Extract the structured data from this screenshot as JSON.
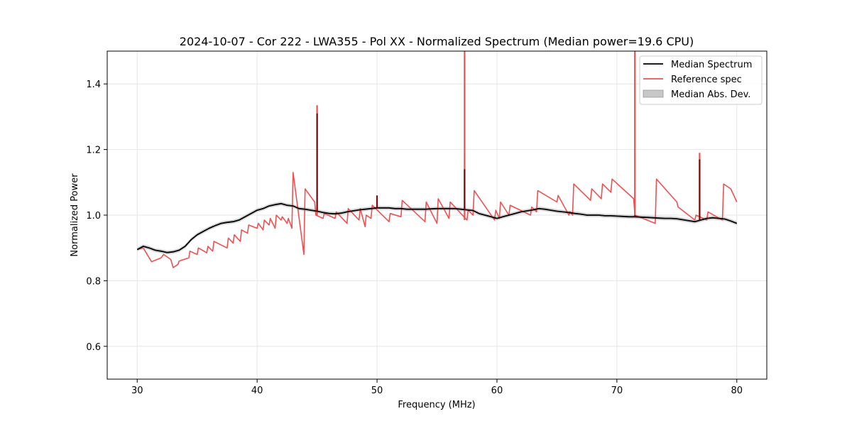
{
  "chart_data": {
    "type": "line",
    "title": "2024-10-07 - Cor 222 - LWA355 - Pol XX - Normalized Spectrum (Median power=19.6 CPU)",
    "xlabel": "Frequency (MHz)",
    "ylabel": "Normalized Power",
    "xlim": [
      27.5,
      82.5
    ],
    "ylim": [
      0.5,
      1.5
    ],
    "xticks": [
      30,
      40,
      50,
      60,
      70,
      80
    ],
    "yticks": [
      0.6,
      0.8,
      1.0,
      1.2,
      1.4
    ],
    "xtick_labels": [
      "30",
      "40",
      "50",
      "60",
      "70",
      "80"
    ],
    "ytick_labels": [
      "0.6",
      "0.8",
      "1.0",
      "1.2",
      "1.4"
    ],
    "grid": true,
    "legend_position": "top-right",
    "legend": [
      {
        "label": "Median Spectrum",
        "kind": "line",
        "color": "#000000"
      },
      {
        "label": "Reference spec",
        "kind": "line",
        "color": "#f05050"
      },
      {
        "label": "Median Abs. Dev.",
        "kind": "patch",
        "color": "#c8c8c8"
      }
    ],
    "series": [
      {
        "name": "Median Spectrum",
        "color": "#000000",
        "x": [
          30.0,
          30.5,
          31.0,
          31.5,
          32.0,
          32.5,
          33.0,
          33.5,
          34.0,
          34.5,
          35.0,
          35.5,
          36.0,
          36.5,
          37.0,
          37.5,
          38.0,
          38.5,
          39.0,
          39.5,
          40.0,
          40.5,
          41.0,
          41.5,
          42.0,
          42.5,
          43.0,
          43.5,
          44.0,
          44.5,
          45.0,
          45.5,
          46.0,
          46.5,
          47.0,
          47.5,
          48.0,
          48.5,
          49.0,
          49.5,
          50.0,
          50.5,
          51.0,
          51.5,
          52.0,
          52.5,
          53.0,
          53.5,
          54.0,
          54.5,
          55.0,
          55.5,
          56.0,
          56.5,
          57.0,
          57.5,
          58.0,
          58.5,
          59.0,
          59.5,
          60.0,
          60.5,
          61.0,
          61.5,
          62.0,
          62.5,
          63.0,
          63.5,
          64.0,
          64.5,
          65.0,
          65.5,
          66.0,
          66.5,
          67.0,
          67.5,
          68.0,
          68.5,
          69.0,
          69.5,
          70.0,
          70.5,
          71.0,
          71.5,
          72.0,
          72.5,
          73.0,
          73.5,
          74.0,
          74.5,
          75.0,
          75.5,
          76.0,
          76.5,
          77.0,
          77.5,
          78.0,
          78.5,
          79.0,
          79.5,
          80.0
        ],
        "y": [
          0.895,
          0.905,
          0.9,
          0.893,
          0.89,
          0.886,
          0.888,
          0.893,
          0.905,
          0.925,
          0.94,
          0.95,
          0.96,
          0.968,
          0.975,
          0.978,
          0.98,
          0.985,
          0.995,
          1.005,
          1.015,
          1.02,
          1.028,
          1.032,
          1.035,
          1.03,
          1.028,
          1.02,
          1.018,
          1.015,
          1.012,
          1.008,
          1.005,
          1.004,
          1.006,
          1.01,
          1.013,
          1.016,
          1.018,
          1.02,
          1.022,
          1.022,
          1.022,
          1.02,
          1.02,
          1.018,
          1.018,
          1.018,
          1.018,
          1.019,
          1.02,
          1.02,
          1.02,
          1.02,
          1.018,
          1.016,
          1.014,
          1.005,
          1.0,
          0.995,
          0.99,
          0.995,
          1.0,
          1.005,
          1.01,
          1.013,
          1.016,
          1.02,
          1.018,
          1.015,
          1.012,
          1.01,
          1.008,
          1.005,
          1.003,
          1.0,
          1.0,
          1.0,
          0.998,
          0.998,
          0.997,
          0.996,
          0.995,
          0.995,
          0.994,
          0.993,
          0.992,
          0.991,
          0.99,
          0.99,
          0.989,
          0.986,
          0.983,
          0.98,
          0.985,
          0.99,
          0.992,
          0.99,
          0.988,
          0.982,
          0.975
        ],
        "spikes": [
          {
            "x": 45.0,
            "y": 1.31
          },
          {
            "x": 50.0,
            "y": 1.06
          },
          {
            "x": 57.3,
            "y": 1.14
          },
          {
            "x": 71.5,
            "y": 1.0
          },
          {
            "x": 76.9,
            "y": 1.17
          }
        ]
      },
      {
        "name": "Reference spec",
        "color": "#f05050",
        "x": [
          30.0,
          30.5,
          31.0,
          31.2,
          32.0,
          32.2,
          32.8,
          33.0,
          33.4,
          33.5,
          34.3,
          34.4,
          35.0,
          35.1,
          35.8,
          35.9,
          36.3,
          36.4,
          37.5,
          37.6,
          38.0,
          38.1,
          38.6,
          38.7,
          39.2,
          39.3,
          40.0,
          40.1,
          40.5,
          40.6,
          41.0,
          41.1,
          41.5,
          41.6,
          42.0,
          42.1,
          42.5,
          42.6,
          42.9,
          43.0,
          43.9,
          44.0,
          44.8,
          44.9,
          45.5,
          45.6,
          46.5,
          46.6,
          47.5,
          47.6,
          48.5,
          48.6,
          49.0,
          49.1,
          49.5,
          49.6,
          51.0,
          51.1,
          52.0,
          52.1,
          54.0,
          54.1,
          55.0,
          55.1,
          56.0,
          56.1,
          57.5,
          57.6,
          58.0,
          58.1,
          59.8,
          59.9,
          60.2,
          60.3,
          61.0,
          61.1,
          62.8,
          62.9,
          63.3,
          63.4,
          65.0,
          65.1,
          66.0,
          66.1,
          66.3,
          66.4,
          67.8,
          67.9,
          68.7,
          68.8,
          69.5,
          69.6,
          71.4,
          71.5,
          73.2,
          73.3,
          75.0,
          75.1,
          76.5,
          76.6,
          77.5,
          77.6,
          78.8,
          78.9,
          79.5,
          80.0
        ],
        "y": [
          0.895,
          0.9,
          0.87,
          0.858,
          0.87,
          0.88,
          0.865,
          0.84,
          0.85,
          0.86,
          0.87,
          0.89,
          0.88,
          0.9,
          0.885,
          0.905,
          0.89,
          0.92,
          0.9,
          0.93,
          0.915,
          0.94,
          0.92,
          0.955,
          0.945,
          0.97,
          0.96,
          0.975,
          0.955,
          0.985,
          0.97,
          0.99,
          0.96,
          1.0,
          0.985,
          0.995,
          0.975,
          0.99,
          0.96,
          1.13,
          0.88,
          1.08,
          1.04,
          1.0,
          0.99,
          1.005,
          0.99,
          1.01,
          0.975,
          1.02,
          0.985,
          1.02,
          0.965,
          1.0,
          0.99,
          1.03,
          0.98,
          1.005,
          0.995,
          1.045,
          0.98,
          1.04,
          0.975,
          1.05,
          0.99,
          1.04,
          0.985,
          1.015,
          1.0,
          1.075,
          0.985,
          1.015,
          0.99,
          1.04,
          1.0,
          1.03,
          1.0,
          1.025,
          1.01,
          1.075,
          1.04,
          1.06,
          1.0,
          1.01,
          1.0,
          1.095,
          1.045,
          1.08,
          1.05,
          1.095,
          1.07,
          1.11,
          1.05,
          1.0,
          0.975,
          1.11,
          1.04,
          1.025,
          0.985,
          1.0,
          0.985,
          1.01,
          0.985,
          1.095,
          1.08,
          1.04
        ],
        "spikes": [
          {
            "x": 45.0,
            "y": 1.335
          },
          {
            "x": 57.3,
            "y": 1.5
          },
          {
            "x": 71.5,
            "y": 1.5
          },
          {
            "x": 76.9,
            "y": 1.19
          }
        ]
      }
    ]
  }
}
